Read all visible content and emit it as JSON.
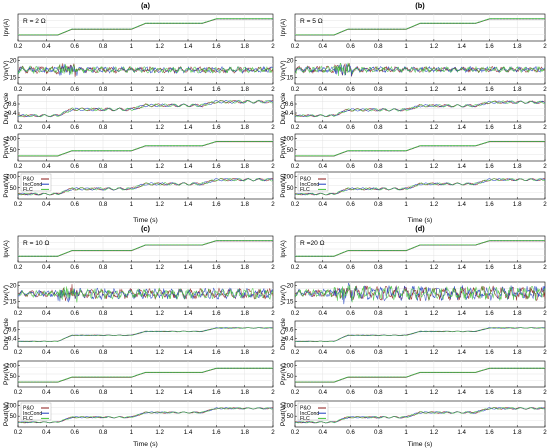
{
  "chart_data": [
    {
      "type": "line",
      "title": "(a)",
      "annotation": "R = 2 Ω",
      "xlabel": "Time (s)",
      "xlim": [
        0.2,
        2.0
      ],
      "xticks": [
        "0.2",
        "0.4",
        "0.6",
        "0.8",
        "1",
        "1.2",
        "1.4",
        "1.6",
        "1.8",
        "2"
      ],
      "series_names": [
        "P&O",
        "IncCond",
        "FLC"
      ],
      "colors": {
        "P&O": "#8b1a1a",
        "IncCond": "#1f3fbf",
        "FLC": "#44c23a"
      },
      "panels": [
        {
          "ylabel": "Ipv(A)",
          "yticks": [],
          "ylim": [
            0,
            6
          ],
          "x": [
            0.2,
            0.48,
            0.58,
            1.0,
            1.1,
            1.5,
            1.6,
            2.0
          ],
          "y": [
            1.3,
            1.3,
            2.6,
            2.6,
            3.9,
            3.9,
            4.9,
            4.9
          ]
        },
        {
          "ylabel": "Vpv(V)",
          "yticks": [
            "15",
            "20"
          ],
          "ylim": [
            13,
            21
          ],
          "mean": 17.2,
          "osc_before": 1.1,
          "osc_after": 0.9
        },
        {
          "ylabel": "Duty Cycle",
          "yticks": [
            "0.4",
            "0.6"
          ],
          "ylim": [
            0.2,
            0.8
          ],
          "x": [
            0.2,
            0.48,
            0.58,
            1.0,
            1.1,
            1.5,
            1.6,
            2.0
          ],
          "y": [
            0.34,
            0.34,
            0.48,
            0.48,
            0.57,
            0.57,
            0.65,
            0.65
          ],
          "osc": 0.04
        },
        {
          "ylabel": "Ppv(W)",
          "yticks": [
            "50",
            "100"
          ],
          "ylim": [
            0,
            120
          ],
          "x": [
            0.2,
            0.48,
            0.58,
            1.0,
            1.1,
            1.5,
            1.6,
            2.0
          ],
          "y": [
            22,
            22,
            45,
            45,
            67,
            67,
            86,
            86
          ]
        },
        {
          "ylabel": "Pout(W)",
          "yticks": [
            "50",
            "100"
          ],
          "ylim": [
            0,
            120
          ],
          "x": [
            0.2,
            0.48,
            0.58,
            1.0,
            1.1,
            1.5,
            1.6,
            2.0
          ],
          "y": [
            22,
            22,
            45,
            45,
            67,
            67,
            86,
            86
          ],
          "osc": 7,
          "legend": true
        }
      ]
    },
    {
      "type": "line",
      "title": "(b)",
      "annotation": "R = 5 Ω",
      "xlabel": "Time (s)",
      "xlim": [
        0.2,
        2.0
      ],
      "xticks": [
        "0.2",
        "0.4",
        "0.6",
        "0.8",
        "1",
        "1.2",
        "1.4",
        "1.6",
        "1.8",
        "2"
      ],
      "series_names": [
        "P&O",
        "IncCond",
        "FLC"
      ],
      "colors": {
        "P&O": "#8b1a1a",
        "IncCond": "#1f3fbf",
        "FLC": "#44c23a"
      },
      "panels": [
        {
          "ylabel": "Ipv(A)",
          "yticks": [],
          "ylim": [
            0,
            6
          ],
          "x": [
            0.2,
            0.48,
            0.58,
            1.0,
            1.1,
            1.5,
            1.6,
            2.0
          ],
          "y": [
            1.3,
            1.3,
            2.6,
            2.6,
            3.9,
            3.9,
            4.9,
            4.9
          ]
        },
        {
          "ylabel": "Vpv(V)",
          "yticks": [
            "15",
            "20"
          ],
          "ylim": [
            13,
            21
          ],
          "mean": 17.3,
          "osc_before": 1.0,
          "osc_after": 0.8
        },
        {
          "ylabel": "Duty Cycle",
          "yticks": [
            "0.4",
            "0.6"
          ],
          "ylim": [
            0.2,
            0.8
          ],
          "x": [
            0.2,
            0.48,
            0.58,
            1.0,
            1.1,
            1.5,
            1.6,
            2.0
          ],
          "y": [
            0.34,
            0.34,
            0.47,
            0.47,
            0.56,
            0.56,
            0.64,
            0.64
          ],
          "osc": 0.035
        },
        {
          "ylabel": "Ppv(W)",
          "yticks": [
            "50",
            "100"
          ],
          "ylim": [
            0,
            120
          ],
          "x": [
            0.2,
            0.48,
            0.58,
            1.0,
            1.1,
            1.5,
            1.6,
            2.0
          ],
          "y": [
            22,
            22,
            45,
            45,
            67,
            67,
            86,
            86
          ]
        },
        {
          "ylabel": "Pout(W)",
          "yticks": [
            "50",
            "100"
          ],
          "ylim": [
            0,
            120
          ],
          "x": [
            0.2,
            0.48,
            0.58,
            1.0,
            1.1,
            1.5,
            1.6,
            2.0
          ],
          "y": [
            22,
            22,
            45,
            45,
            67,
            67,
            86,
            86
          ],
          "osc": 6,
          "legend": true
        }
      ]
    },
    {
      "type": "line",
      "title": "(c)",
      "annotation": "R = 10 Ω",
      "xlabel": "Time (s)",
      "xlim": [
        0.2,
        2.0
      ],
      "xticks": [
        "0.2",
        "0.4",
        "0.6",
        "0.8",
        "1",
        "1.2",
        "1.4",
        "1.6",
        "1.8",
        "2"
      ],
      "series_names": [
        "P&O",
        "IncCond",
        "FLC"
      ],
      "colors": {
        "P&O": "#8b1a1a",
        "IncCond": "#1f3fbf",
        "FLC": "#44c23a"
      },
      "panels": [
        {
          "ylabel": "Ipv(A)",
          "yticks": [],
          "ylim": [
            0,
            6
          ],
          "x": [
            0.2,
            0.48,
            0.58,
            1.0,
            1.1,
            1.5,
            1.6,
            2.0
          ],
          "y": [
            1.3,
            1.3,
            2.6,
            2.6,
            3.9,
            3.9,
            4.9,
            4.9
          ]
        },
        {
          "ylabel": "Vpv(V)",
          "yticks": [
            "15",
            "20"
          ],
          "ylim": [
            13,
            21
          ],
          "mean": 17.4,
          "osc_before": 1.0,
          "osc_after": 1.6
        },
        {
          "ylabel": "Duty Cycle",
          "yticks": [
            "0.4",
            "0.6"
          ],
          "ylim": [
            0.2,
            0.8
          ],
          "x": [
            0.2,
            0.48,
            0.58,
            1.0,
            1.1,
            1.5,
            1.6,
            2.0
          ],
          "y": [
            0.33,
            0.33,
            0.47,
            0.47,
            0.56,
            0.56,
            0.64,
            0.64
          ],
          "osc": 0.01
        },
        {
          "ylabel": "Ppv(W)",
          "yticks": [
            "50",
            "100"
          ],
          "ylim": [
            0,
            120
          ],
          "x": [
            0.2,
            0.48,
            0.58,
            1.0,
            1.1,
            1.5,
            1.6,
            2.0
          ],
          "y": [
            22,
            22,
            45,
            45,
            67,
            67,
            86,
            86
          ]
        },
        {
          "ylabel": "Pout(W)",
          "yticks": [
            "50",
            "100"
          ],
          "ylim": [
            0,
            120
          ],
          "x": [
            0.2,
            0.48,
            0.58,
            1.0,
            1.1,
            1.5,
            1.6,
            2.0
          ],
          "y": [
            22,
            22,
            45,
            45,
            67,
            67,
            86,
            86
          ],
          "osc": 4,
          "legend": true
        }
      ]
    },
    {
      "type": "line",
      "title": "(d)",
      "annotation": "R =20 Ω",
      "xlabel": "Time (s)",
      "xlim": [
        0.2,
        2.0
      ],
      "xticks": [
        "0.2",
        "0.4",
        "0.6",
        "0.8",
        "1",
        "1.2",
        "1.4",
        "1.6",
        "1.8",
        "2"
      ],
      "series_names": [
        "P&O",
        "IncCond",
        "FLC"
      ],
      "colors": {
        "P&O": "#8b1a1a",
        "IncCond": "#1f3fbf",
        "FLC": "#44c23a"
      },
      "panels": [
        {
          "ylabel": "Ipv(A)",
          "yticks": [],
          "ylim": [
            0,
            6
          ],
          "x": [
            0.2,
            0.48,
            0.58,
            1.0,
            1.1,
            1.5,
            1.6,
            2.0
          ],
          "y": [
            1.3,
            1.3,
            2.6,
            2.6,
            3.9,
            3.9,
            4.9,
            4.9
          ]
        },
        {
          "ylabel": "Vpv(V)",
          "yticks": [
            "15",
            "20"
          ],
          "ylim": [
            13,
            21
          ],
          "mean": 17.6,
          "osc_before": 1.1,
          "osc_after": 2.2
        },
        {
          "ylabel": "Duty Cycle",
          "yticks": [
            "0.4",
            "0.6"
          ],
          "ylim": [
            0.2,
            0.8
          ],
          "x": [
            0.2,
            0.48,
            0.58,
            1.0,
            1.1,
            1.5,
            1.6,
            2.0
          ],
          "y": [
            0.33,
            0.33,
            0.47,
            0.47,
            0.56,
            0.56,
            0.64,
            0.64
          ],
          "osc": 0.01
        },
        {
          "ylabel": "Ppv(W)",
          "yticks": [
            "50",
            "100"
          ],
          "ylim": [
            0,
            120
          ],
          "x": [
            0.2,
            0.48,
            0.58,
            1.0,
            1.1,
            1.5,
            1.6,
            2.0
          ],
          "y": [
            22,
            22,
            45,
            45,
            67,
            67,
            86,
            86
          ]
        },
        {
          "ylabel": "Pout(W)",
          "yticks": [
            "50",
            "100"
          ],
          "ylim": [
            0,
            120
          ],
          "x": [
            0.2,
            0.48,
            0.58,
            1.0,
            1.1,
            1.5,
            1.6,
            2.0
          ],
          "y": [
            22,
            22,
            45,
            45,
            67,
            67,
            86,
            86
          ],
          "osc": 5,
          "legend": true
        }
      ]
    }
  ]
}
